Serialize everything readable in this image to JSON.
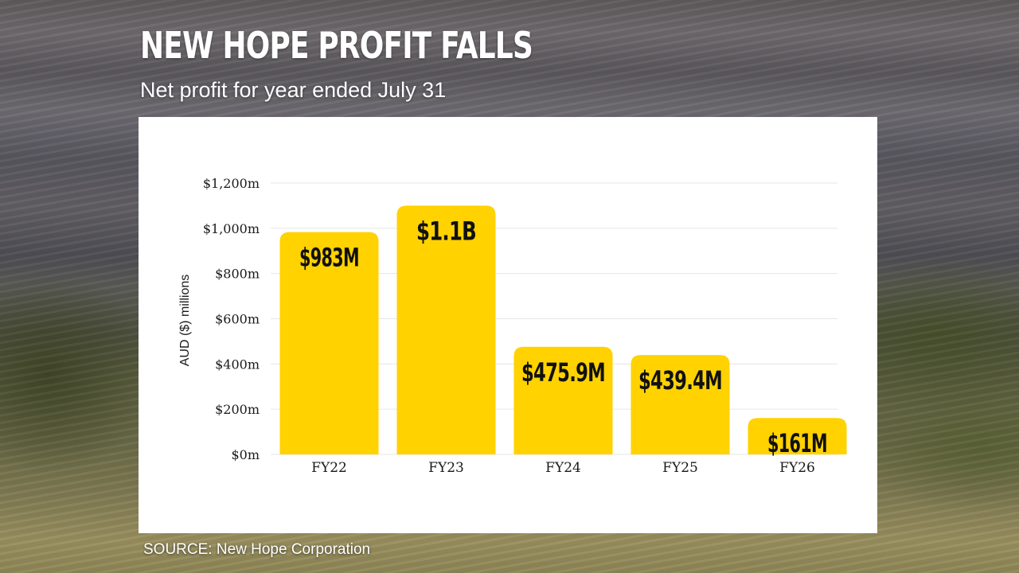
{
  "header": {
    "title": "NEW HOPE PROFIT FALLS",
    "subtitle": "Net profit for year ended July 31"
  },
  "footer": {
    "source": "SOURCE: New Hope Corporation"
  },
  "colors": {
    "bar": "#FFD200",
    "grid": "#e6e6e6",
    "text": "#1a1a1a",
    "card": "#ffffff"
  },
  "chart_data": {
    "type": "bar",
    "categories": [
      "FY22",
      "FY23",
      "FY24",
      "FY25",
      "FY26"
    ],
    "values": [
      983,
      1100,
      475.9,
      439.4,
      161
    ],
    "data_labels": [
      "$983M",
      "$1.1B",
      "$475.9M",
      "$439.4M",
      "$161M"
    ],
    "ylabel": "AUD ($) millions",
    "ylim": [
      0,
      1200
    ],
    "yticks": [
      0,
      200,
      400,
      600,
      800,
      1000,
      1200
    ],
    "ytick_labels": [
      "$0m",
      "$200m",
      "$400m",
      "$600m",
      "$800m",
      "$1,000m",
      "$1,200m"
    ],
    "grid": true,
    "legend": "none"
  }
}
